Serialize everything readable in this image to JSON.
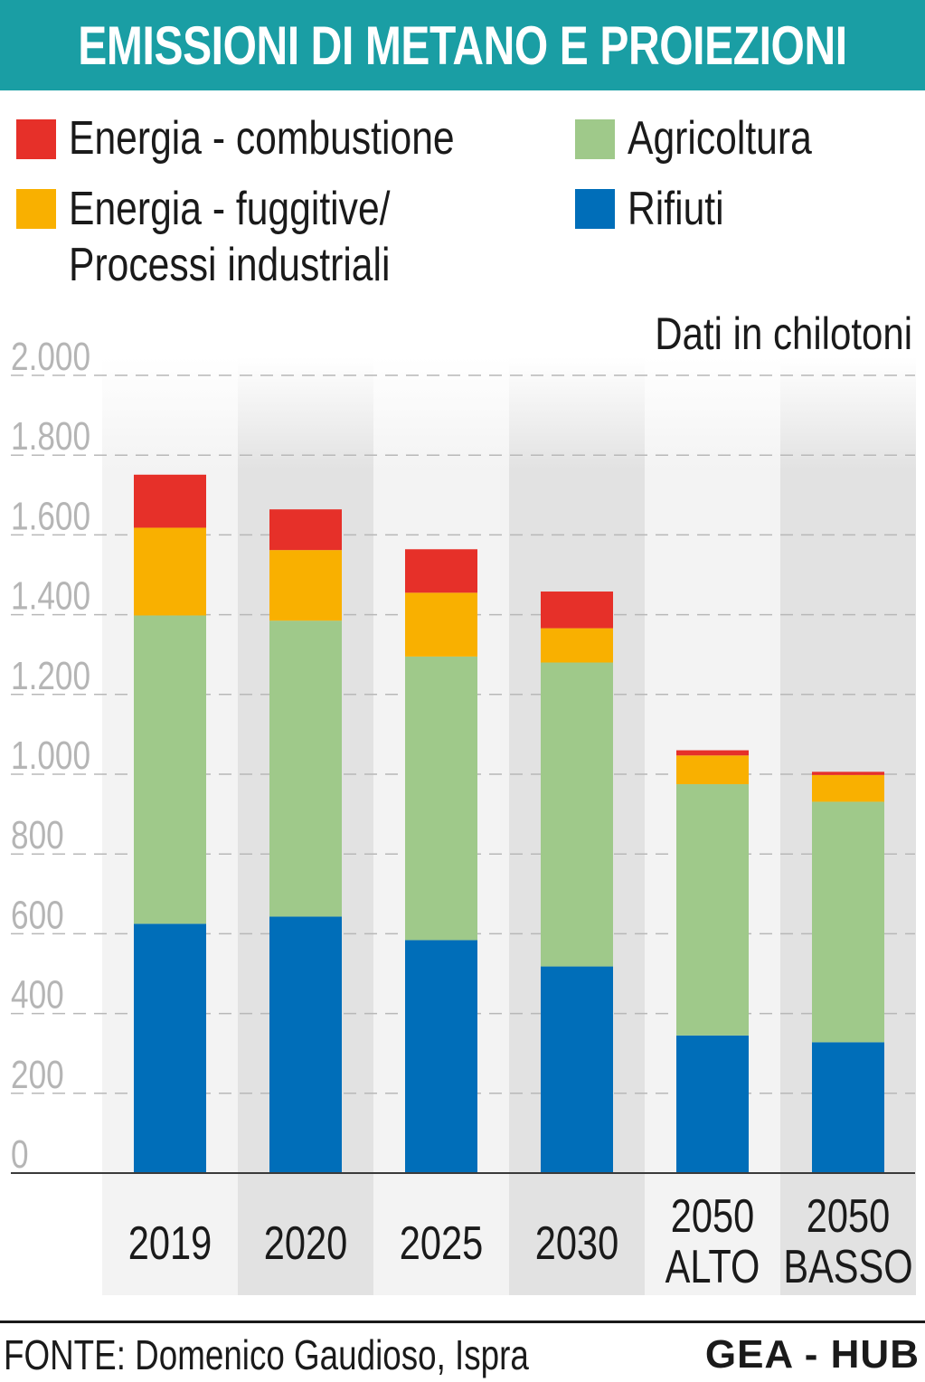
{
  "title": "EMISSIONI DI METANO E PROIEZIONI",
  "units": "Dati in chilotoni",
  "source": "FONTE: Domenico Gaudioso, Ispra",
  "brand": "GEA - HUB",
  "colors": {
    "title_bg": "#1a9ea4",
    "combustione": "#e63029",
    "fuggitive": "#f9b000",
    "agricoltura": "#9fc98a",
    "rifiuti": "#006eb9",
    "band_light": "#f3f3f3",
    "band_dark": "#e2e2e2",
    "gridline": "#b8b8b8",
    "tick_text": "#b5b5b5"
  },
  "legend": [
    {
      "key": "combustione",
      "label": "Energia - combustione"
    },
    {
      "key": "agricoltura",
      "label": "Agricoltura"
    },
    {
      "key": "fuggitive",
      "label_line1": "Energia - fuggitive/",
      "label_line2": "Processi industriali"
    },
    {
      "key": "rifiuti",
      "label": "Rifiuti"
    }
  ],
  "chart_data": {
    "type": "bar",
    "stacked": true,
    "categories": [
      [
        "2019"
      ],
      [
        "2020"
      ],
      [
        "2025"
      ],
      [
        "2030"
      ],
      [
        "2050",
        "ALTO"
      ],
      [
        "2050",
        "BASSO"
      ]
    ],
    "series": [
      {
        "name": "Rifiuti",
        "key": "rifiuti",
        "values": [
          625,
          643,
          584,
          518,
          345,
          328
        ]
      },
      {
        "name": "Agricoltura",
        "key": "agricoltura",
        "values": [
          773,
          742,
          711,
          762,
          630,
          603
        ]
      },
      {
        "name": "Energia - fuggitive/ Processi industriali",
        "key": "fuggitive",
        "values": [
          220,
          177,
          160,
          86,
          72,
          67
        ]
      },
      {
        "name": "Energia - combustione",
        "key": "combustione",
        "values": [
          133,
          102,
          109,
          92,
          13,
          8
        ]
      }
    ],
    "ylim": [
      0,
      2000
    ],
    "yticks": [
      {
        "value": 0,
        "label": "0"
      },
      {
        "value": 200,
        "label": "200"
      },
      {
        "value": 400,
        "label": "400"
      },
      {
        "value": 600,
        "label": "600"
      },
      {
        "value": 800,
        "label": "800"
      },
      {
        "value": 1000,
        "label": "1.000"
      },
      {
        "value": 1200,
        "label": "1.200"
      },
      {
        "value": 1400,
        "label": "1.400"
      },
      {
        "value": 1600,
        "label": "1.600"
      },
      {
        "value": 1800,
        "label": "1.800"
      },
      {
        "value": 2000,
        "label": "2.000"
      }
    ],
    "grid": true,
    "legend_position": "top"
  }
}
